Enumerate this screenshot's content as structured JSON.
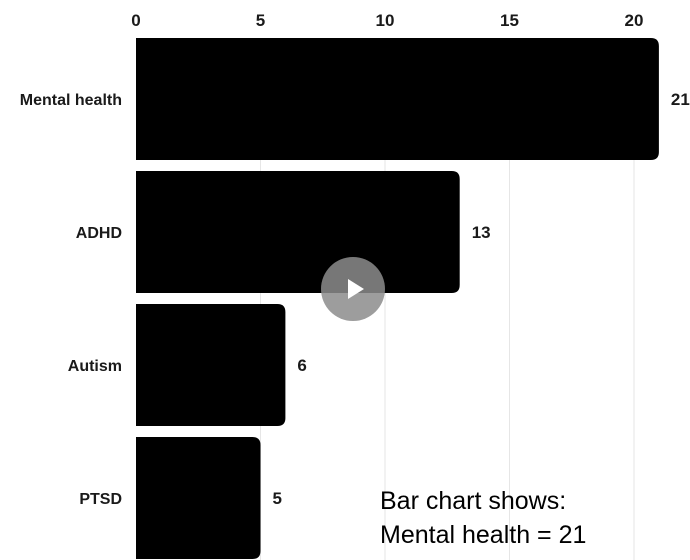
{
  "chart_data": {
    "type": "bar",
    "orientation": "horizontal",
    "categories": [
      "Mental health",
      "ADHD",
      "Autism",
      "PTSD"
    ],
    "values": [
      21,
      13,
      6,
      5
    ],
    "x_ticks": [
      "0",
      "5",
      "10",
      "15",
      "20"
    ],
    "xlim": [
      0,
      21
    ],
    "tick_position": "top",
    "grid": true,
    "bar_color": "#000000",
    "grid_color": "#e6e6e6"
  },
  "caption": {
    "line1": "Bar chart shows:",
    "line2": "Mental health = 21"
  },
  "overlay": {
    "icon": "play-icon"
  }
}
